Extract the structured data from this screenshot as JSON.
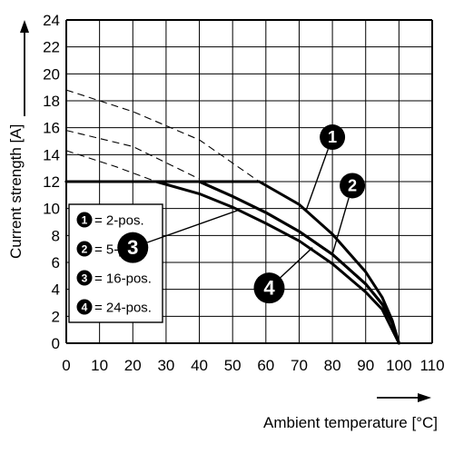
{
  "chart_data": {
    "type": "line",
    "xlabel": "Ambient temperature [°C]",
    "ylabel": "Current strength [A]",
    "xlim": [
      0,
      110
    ],
    "ylim": [
      0,
      24
    ],
    "x_ticks": [
      0,
      10,
      20,
      30,
      40,
      50,
      60,
      70,
      80,
      90,
      100,
      110
    ],
    "y_ticks": [
      0,
      2,
      4,
      6,
      8,
      10,
      12,
      14,
      16,
      18,
      20,
      22,
      24
    ],
    "grid": true,
    "legend": {
      "placement": "left-middle",
      "entries": [
        {
          "marker": "1",
          "label": "= 2-pos."
        },
        {
          "marker": "2",
          "label": "= 5-pos."
        },
        {
          "marker": "3",
          "label": "= 16-pos."
        },
        {
          "marker": "4",
          "label": "= 24-pos."
        }
      ]
    },
    "series": [
      {
        "marker": "1",
        "line_style": "solid",
        "points": [
          [
            0,
            12
          ],
          [
            58,
            12
          ],
          [
            70,
            10.3
          ],
          [
            80,
            8.1
          ],
          [
            90,
            5.3
          ],
          [
            95,
            3.4
          ],
          [
            98,
            1.7
          ],
          [
            100,
            0
          ]
        ]
      },
      {
        "marker": "2",
        "line_style": "solid",
        "points": [
          [
            0,
            12
          ],
          [
            40,
            12
          ],
          [
            50,
            10.9
          ],
          [
            60,
            9.7
          ],
          [
            70,
            8.3
          ],
          [
            80,
            6.6
          ],
          [
            90,
            4.4
          ],
          [
            95,
            2.9
          ],
          [
            98,
            1.5
          ],
          [
            100,
            0
          ]
        ]
      },
      {
        "marker": "3",
        "line_style": "solid",
        "points": [
          [
            0,
            12
          ],
          [
            27,
            12
          ],
          [
            40,
            11.1
          ],
          [
            50,
            10.1
          ],
          [
            60,
            8.9
          ],
          [
            70,
            7.6
          ],
          [
            80,
            5.9
          ],
          [
            90,
            3.8
          ],
          [
            95,
            2.5
          ],
          [
            100,
            0
          ]
        ]
      },
      {
        "marker": "4",
        "line_style": "solid",
        "points": [
          [
            0,
            12
          ],
          [
            40,
            12
          ],
          [
            50,
            10.9
          ],
          [
            60,
            9.7
          ],
          [
            70,
            8.3
          ],
          [
            80,
            6.6
          ],
          [
            90,
            4.4
          ],
          [
            95,
            2.9
          ],
          [
            98,
            1.5
          ],
          [
            100,
            0
          ]
        ]
      }
    ],
    "extrapolations": [
      {
        "marker": "1",
        "line_style": "dashed",
        "points": [
          [
            0,
            18.8
          ],
          [
            20,
            17.2
          ],
          [
            40,
            15.1
          ],
          [
            58,
            12
          ]
        ]
      },
      {
        "marker": "2",
        "line_style": "dashed",
        "points": [
          [
            0,
            15.8
          ],
          [
            20,
            14.6
          ],
          [
            40,
            12.2
          ]
        ]
      },
      {
        "marker": "3",
        "line_style": "dashed",
        "points": [
          [
            0,
            14.3
          ],
          [
            15,
            13.1
          ],
          [
            27,
            12
          ]
        ]
      }
    ],
    "callouts": [
      {
        "marker": "1",
        "at": [
          80,
          15.3
        ],
        "target": [
          72,
          9.8
        ],
        "size": "small"
      },
      {
        "marker": "2",
        "at": [
          86,
          11.7
        ],
        "target": [
          80,
          6.6
        ],
        "size": "small"
      },
      {
        "marker": "3",
        "at": [
          20,
          7.1
        ],
        "target": [
          52,
          9.9
        ],
        "size": "large"
      },
      {
        "marker": "4",
        "at": [
          61,
          4.1
        ],
        "target": [
          74,
          7.1
        ],
        "size": "large"
      }
    ]
  }
}
